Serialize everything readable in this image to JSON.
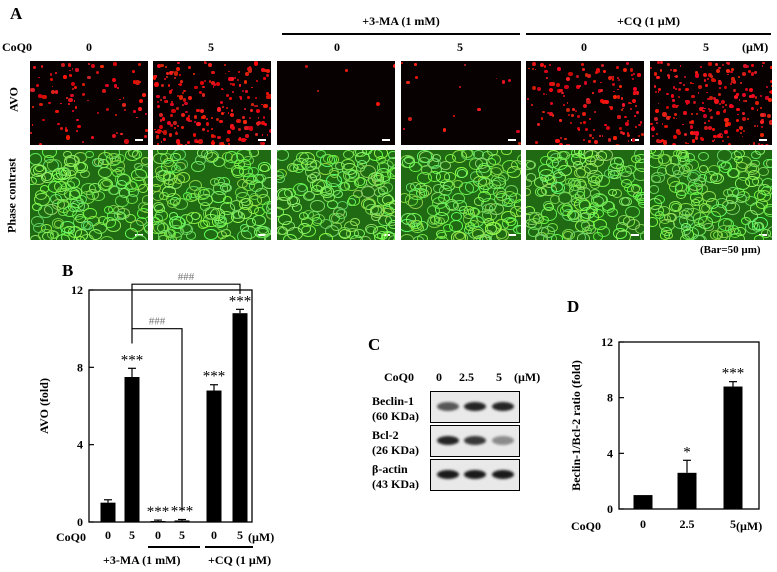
{
  "panelA": {
    "letter": "A",
    "coq_label": "CoQ0",
    "doses": [
      "0",
      "5",
      "0",
      "5",
      "0",
      "5"
    ],
    "unit": "(µM)",
    "group_3ma": "+3-MA (1 mM)",
    "group_cq": "+CQ (1 µM)",
    "row_avo": "AVO",
    "row_phase": "Phase contrast",
    "bar_note": "(Bar=50 µm)",
    "avo_density": [
      0.35,
      0.85,
      0.02,
      0.06,
      0.6,
      0.9
    ]
  },
  "panelB": {
    "letter": "B",
    "coq_label": "CoQ0",
    "unit": "(µM)",
    "doses": [
      "0",
      "5",
      "0",
      "5",
      "0",
      "5"
    ],
    "group_3ma": "+3-MA (1 mM)",
    "group_cq": "+CQ (1 µM)",
    "hash_upper": "###",
    "hash_lower": "###"
  },
  "panelC": {
    "letter": "C",
    "coq_label": "CoQ0",
    "doses": [
      "0",
      "2.5",
      "5"
    ],
    "unit": "(µM)",
    "rows": [
      {
        "name": "Beclin-1",
        "kda": "(60 KDa)",
        "intensity": [
          0.7,
          0.95,
          0.95
        ]
      },
      {
        "name": "Bcl-2",
        "kda": "(26 KDa)",
        "intensity": [
          0.95,
          0.85,
          0.45
        ]
      },
      {
        "name": "β-actin",
        "kda": "(43 KDa)",
        "intensity": [
          1.0,
          1.0,
          1.0
        ]
      }
    ]
  },
  "panelD": {
    "letter": "D",
    "coq_label": "CoQ0",
    "unit": "(µM)"
  },
  "chart_data": [
    {
      "type": "bar",
      "panel": "B",
      "categories": [
        "0",
        "5",
        "0",
        "5",
        "0",
        "5"
      ],
      "values": [
        1.0,
        7.5,
        0.05,
        0.08,
        6.8,
        10.8
      ],
      "errors": [
        0.15,
        0.45,
        0.05,
        0.05,
        0.3,
        0.2
      ],
      "significance": [
        "",
        "***",
        "***",
        "***",
        "***",
        "***"
      ],
      "ylabel": "AVO (fold)",
      "ylim": [
        0,
        12
      ],
      "yticks": [
        0,
        4,
        8,
        12
      ]
    },
    {
      "type": "bar",
      "panel": "D",
      "categories": [
        "0",
        "2.5",
        "5"
      ],
      "values": [
        1.0,
        2.6,
        8.8
      ],
      "errors": [
        0.0,
        0.9,
        0.35
      ],
      "significance": [
        "",
        "*",
        "***"
      ],
      "ylabel": "Beclin-1/Bcl-2 ratio (fold)",
      "ylim": [
        0,
        12
      ],
      "yticks": [
        0,
        4,
        8,
        12
      ]
    }
  ]
}
